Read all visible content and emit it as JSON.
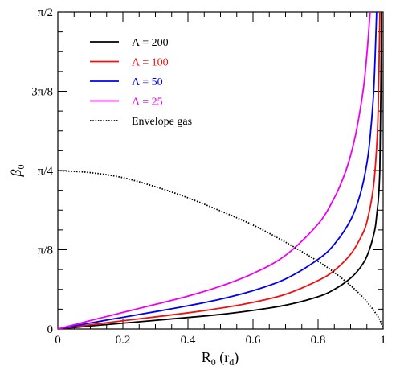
{
  "chart_data": {
    "type": "line",
    "xlabel": "R",
    "xlabel_sub": "0",
    "xlabel_units": " (r",
    "xlabel_units_sub": "d",
    "xlabel_close": ")",
    "ylabel": "β",
    "ylabel_sub": "0",
    "xlim": [
      0,
      1
    ],
    "ylim": [
      0,
      1.5708
    ],
    "x_ticks": [
      {
        "value": 0,
        "label": "0"
      },
      {
        "value": 0.2,
        "label": "0.2"
      },
      {
        "value": 0.4,
        "label": "0.4"
      },
      {
        "value": 0.6,
        "label": "0.6"
      },
      {
        "value": 0.8,
        "label": "0.8"
      },
      {
        "value": 1,
        "label": "1"
      }
    ],
    "y_ticks": [
      {
        "value": 0,
        "label": "0"
      },
      {
        "value": 0.3927,
        "label": "π/8"
      },
      {
        "value": 0.7854,
        "label": "π/4"
      },
      {
        "value": 1.1781,
        "label": "3π/8"
      },
      {
        "value": 1.5708,
        "label": "π/2"
      }
    ],
    "grid": false,
    "legend_position": "top-left",
    "series": [
      {
        "name": "Λ = 200",
        "color": "#000000",
        "style": "solid",
        "x": [
          0,
          0.05,
          0.1,
          0.2,
          0.3,
          0.4,
          0.5,
          0.6,
          0.7,
          0.8,
          0.85,
          0.9,
          0.93,
          0.95,
          0.97,
          0.98,
          0.99,
          0.995
        ],
        "y": [
          0,
          0.0075,
          0.015,
          0.029,
          0.043,
          0.057,
          0.072,
          0.092,
          0.118,
          0.16,
          0.196,
          0.252,
          0.305,
          0.36,
          0.46,
          0.56,
          0.8,
          1.5708
        ]
      },
      {
        "name": "Λ = 100",
        "color": "#ee1111",
        "style": "solid",
        "x": [
          0,
          0.05,
          0.1,
          0.2,
          0.3,
          0.4,
          0.5,
          0.6,
          0.7,
          0.8,
          0.85,
          0.9,
          0.93,
          0.95,
          0.97,
          0.98,
          0.985,
          0.99
        ],
        "y": [
          0,
          0.011,
          0.021,
          0.041,
          0.06,
          0.08,
          0.103,
          0.132,
          0.172,
          0.24,
          0.29,
          0.37,
          0.45,
          0.53,
          0.7,
          0.9,
          1.1,
          1.5708
        ]
      },
      {
        "name": "Λ = 50",
        "color": "#0000ee",
        "style": "solid",
        "x": [
          0,
          0.05,
          0.1,
          0.2,
          0.3,
          0.4,
          0.5,
          0.6,
          0.7,
          0.8,
          0.85,
          0.9,
          0.93,
          0.95,
          0.96,
          0.97,
          0.975,
          0.98
        ],
        "y": [
          0,
          0.015,
          0.03,
          0.058,
          0.086,
          0.115,
          0.148,
          0.19,
          0.248,
          0.345,
          0.42,
          0.54,
          0.67,
          0.82,
          0.95,
          1.15,
          1.33,
          1.5708
        ]
      },
      {
        "name": "Λ = 25",
        "color": "#ee00ee",
        "style": "solid",
        "x": [
          0,
          0.05,
          0.1,
          0.2,
          0.3,
          0.4,
          0.5,
          0.6,
          0.7,
          0.8,
          0.85,
          0.88,
          0.9,
          0.92,
          0.94,
          0.95,
          0.955,
          0.96
        ],
        "y": [
          0,
          0.021,
          0.042,
          0.082,
          0.122,
          0.163,
          0.212,
          0.275,
          0.365,
          0.52,
          0.65,
          0.76,
          0.86,
          1.0,
          1.2,
          1.36,
          1.46,
          1.5708
        ]
      },
      {
        "name": "Envelope gas",
        "color": "#000000",
        "style": "dotted",
        "x": [
          0,
          0.1,
          0.2,
          0.3,
          0.4,
          0.5,
          0.6,
          0.7,
          0.8,
          0.85,
          0.9,
          0.93,
          0.95,
          0.97,
          0.98,
          0.99,
          1.0
        ],
        "y": [
          0.7854,
          0.775,
          0.75,
          0.705,
          0.65,
          0.585,
          0.515,
          0.43,
          0.335,
          0.28,
          0.215,
          0.17,
          0.135,
          0.095,
          0.07,
          0.045,
          0
        ]
      }
    ]
  }
}
